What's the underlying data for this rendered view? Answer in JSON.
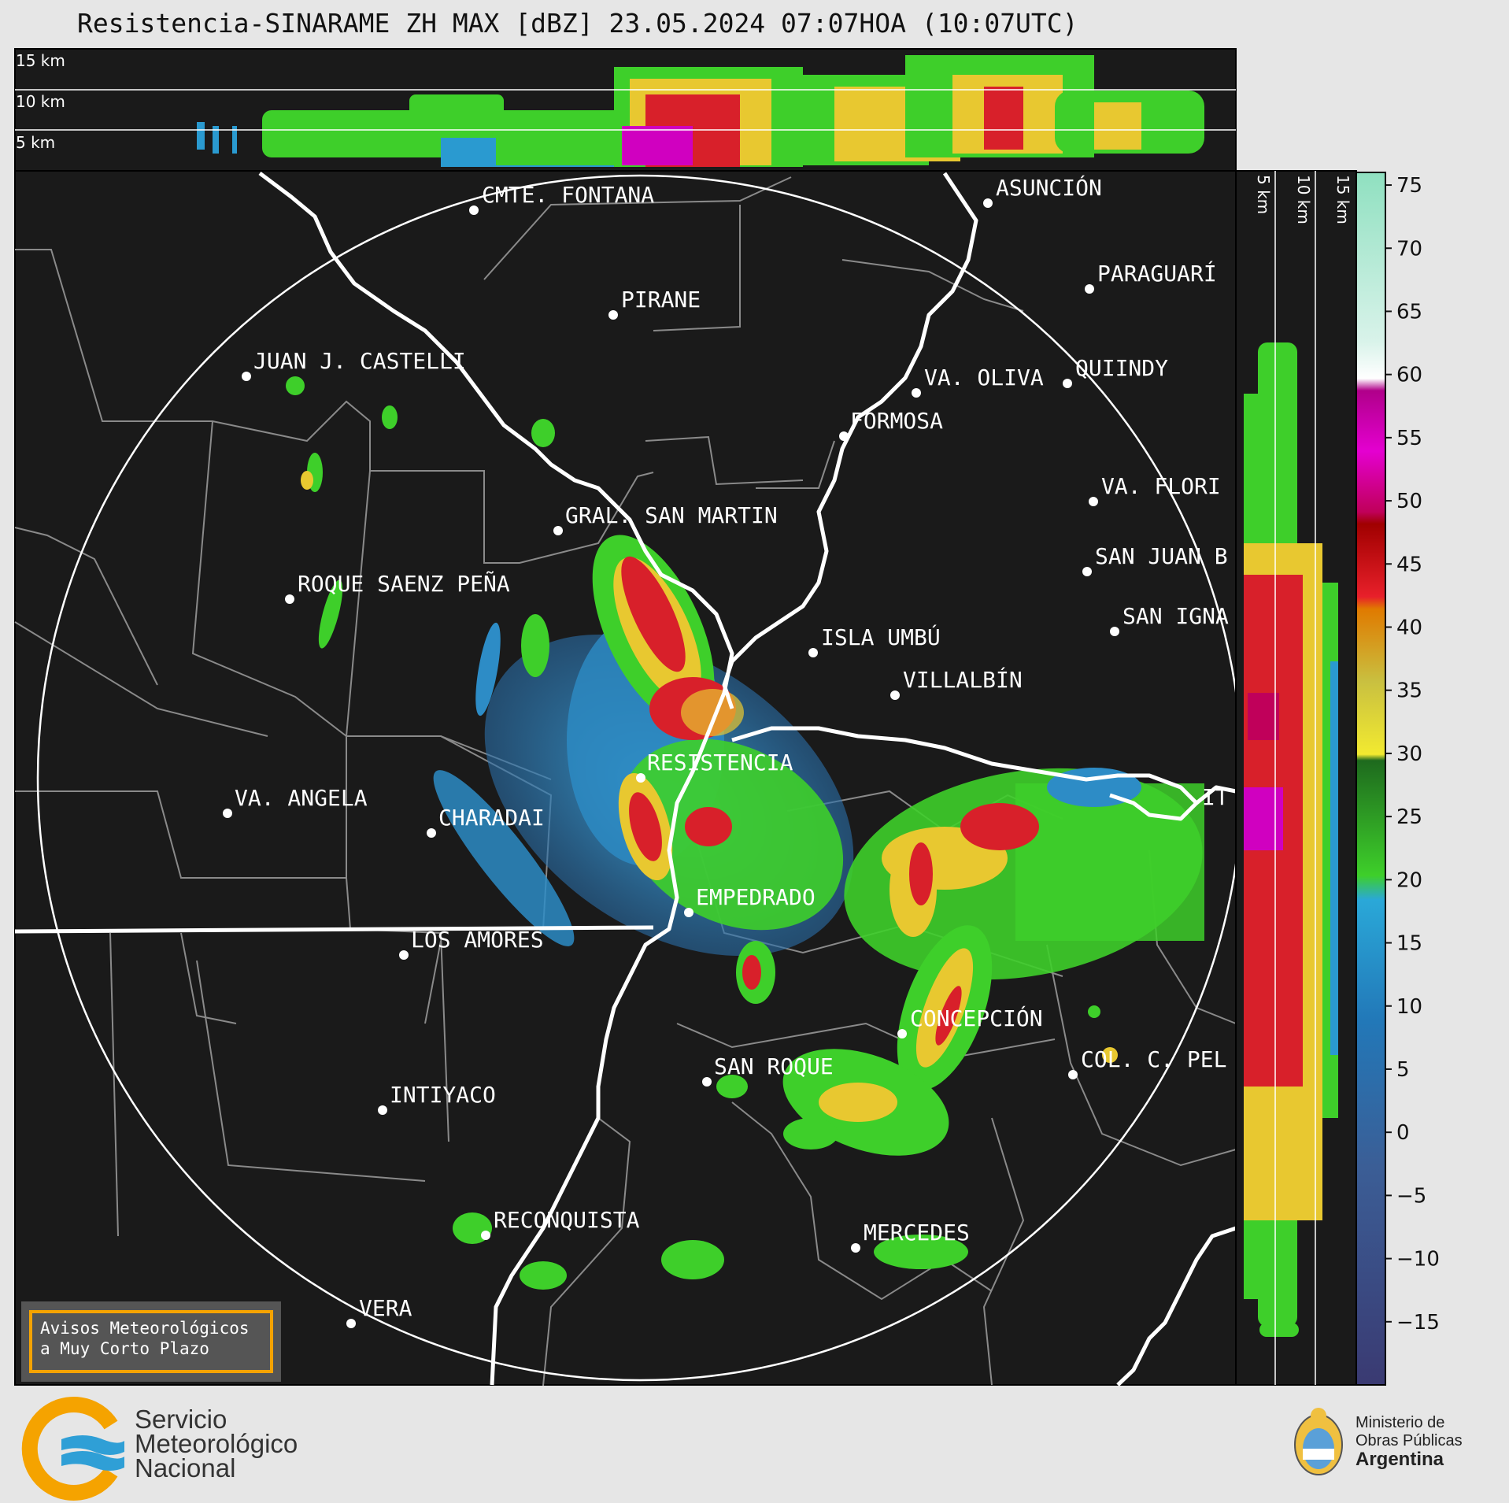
{
  "title": "Resistencia-SINARAME ZH MAX [dBZ] 23.05.2024 07:07HOA (10:07UTC)",
  "top_profile_labels": [
    "15 km",
    "10 km",
    "5 km"
  ],
  "side_profile_labels": [
    "5 km",
    "10 km",
    "15 km"
  ],
  "places": [
    {
      "name": "CMTE. FONTANA"
    },
    {
      "name": "ASUNCIÓN"
    },
    {
      "name": "PIRANE"
    },
    {
      "name": "PARAGUARÍ"
    },
    {
      "name": "JUAN J. CASTELLI"
    },
    {
      "name": "VA. OLIVA"
    },
    {
      "name": "QUIINDY"
    },
    {
      "name": "FORMOSA"
    },
    {
      "name": "VA. FLORI"
    },
    {
      "name": "GRAL. SAN MARTIN"
    },
    {
      "name": "SAN JUAN B"
    },
    {
      "name": "ROQUE SAENZ PEÑA"
    },
    {
      "name": "SAN IGNA"
    },
    {
      "name": "ISLA UMBÚ"
    },
    {
      "name": "VILLALBÍN"
    },
    {
      "name": "RESISTENCIA"
    },
    {
      "name": "IT"
    },
    {
      "name": "VA. ANGELA"
    },
    {
      "name": "CHARADAI"
    },
    {
      "name": "EMPEDRADO"
    },
    {
      "name": "LOS AMORES"
    },
    {
      "name": "CONCEPCIÓN"
    },
    {
      "name": "COL. C. PEL"
    },
    {
      "name": "SAN ROQUE"
    },
    {
      "name": "INTIYACO"
    },
    {
      "name": "RECONQUISTA"
    },
    {
      "name": "MERCEDES"
    },
    {
      "name": "VERA"
    }
  ],
  "colorbar": {
    "unit": "dBZ",
    "ticks": [
      "75",
      "70",
      "65",
      "60",
      "55",
      "50",
      "45",
      "40",
      "35",
      "30",
      "25",
      "20",
      "15",
      "10",
      "5",
      "0",
      "−5",
      "−10",
      "−15"
    ],
    "range": [
      -20,
      76
    ]
  },
  "avisos": {
    "line1": "Avisos Meteorológicos",
    "line2": "a Muy Corto Plazo"
  },
  "logo_smn": {
    "line1": "Servicio",
    "line2": "Meteorológico",
    "line3": "Nacional"
  },
  "logo_ministerio": {
    "line1": "Ministerio de",
    "line2": "Obras Públicas",
    "line3": "Argentina"
  },
  "colors": {
    "background": "#1a1a1a",
    "page": "#e6e6e6",
    "accent": "#f5a300",
    "smn_blue": "#2f9fd6"
  }
}
